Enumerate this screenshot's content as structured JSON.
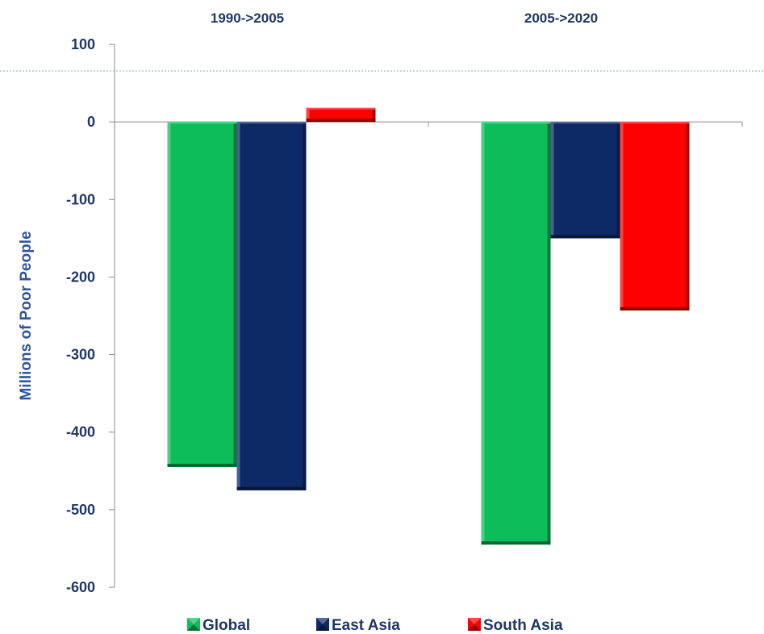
{
  "chart_data": {
    "type": "bar",
    "categories": [
      "1990->2005",
      "2005->2020"
    ],
    "series": [
      {
        "name": "Global",
        "values": [
          -445,
          -545
        ],
        "color": "#0dbd5a"
      },
      {
        "name": "East Asia",
        "values": [
          -475,
          -150
        ],
        "color": "#0d2a66"
      },
      {
        "name": "South Asia",
        "values": [
          18,
          -243
        ],
        "color": "#ff0000"
      }
    ],
    "ylabel": "Millions of Poor People",
    "ylim": [
      -600,
      100
    ],
    "yticks": [
      100,
      0,
      -100,
      -200,
      -300,
      -400,
      -500,
      -600
    ],
    "ytick_labels": [
      "100",
      "0",
      "-100",
      "-200",
      "-300",
      "-400",
      "-500",
      "-600"
    ],
    "category_labels_position": "top",
    "legend_position": "bottom",
    "grid": false
  }
}
